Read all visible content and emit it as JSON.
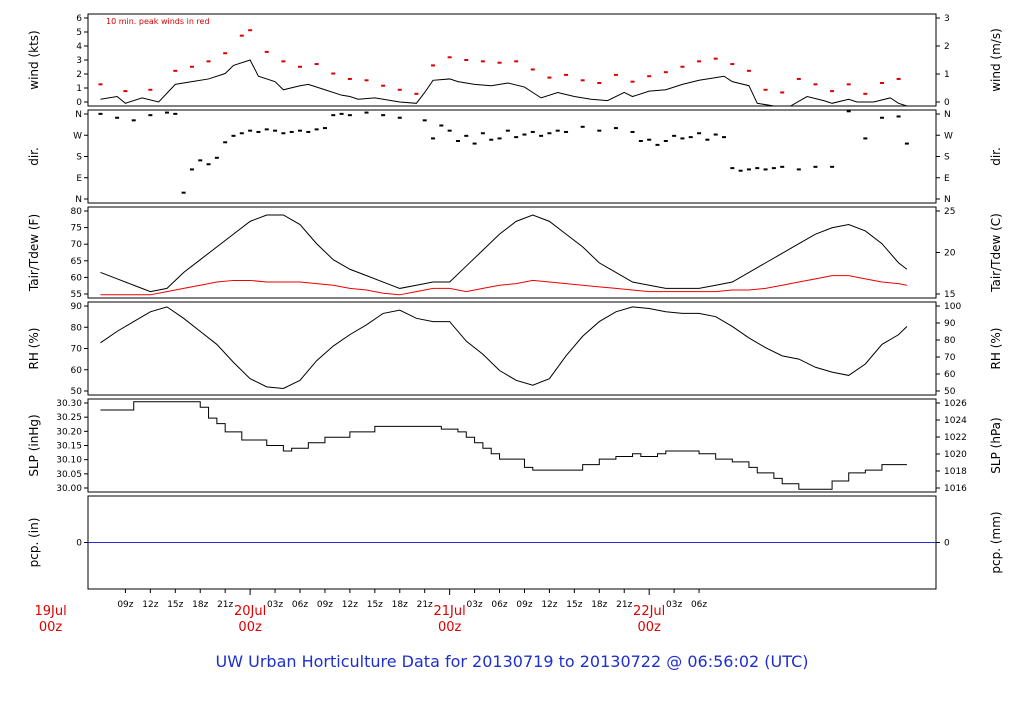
{
  "title": "UW Urban Horticulture Data for 20130719  to  20130722 @ 06:56:02  (UTC)",
  "colors": {
    "title": "#1e2fd0",
    "date_labels": "#dd0000",
    "primary_series": "#000000",
    "peak_series": "#dd0000",
    "dewpoint": "#ee0000",
    "precip": "#2b2bd6",
    "frame": "#000000"
  },
  "chart_data": [
    {
      "id": "wind",
      "type": "line",
      "ylabel": "wind (kts)",
      "ylabel_right": "wind (m/s)",
      "annotation": "10 min. peak winds in red",
      "yticks": [
        "0",
        "1",
        "2",
        "3",
        "4",
        "5",
        "6"
      ],
      "yticks_right": [
        "0",
        "1",
        "2",
        "3"
      ],
      "ylim": [
        0,
        6.8
      ],
      "series": [
        {
          "name": "wind speed",
          "color": "#000000",
          "x_hours": [
            6,
            8,
            9,
            11,
            13,
            15,
            17,
            19,
            21,
            22,
            24,
            25,
            27,
            28,
            30,
            31,
            33,
            35,
            36,
            37,
            39,
            41,
            42,
            44,
            45,
            46,
            48,
            49,
            51,
            53,
            55,
            57,
            59,
            61,
            63,
            65,
            67,
            69,
            70,
            72,
            74,
            76,
            78,
            80,
            81,
            82,
            84,
            85,
            87,
            89,
            91,
            93,
            94,
            96,
            97,
            99,
            101,
            102,
            103
          ],
          "values": [
            0.5,
            0.7,
            0.2,
            0.6,
            0.3,
            1.6,
            1.8,
            2.0,
            2.4,
            3.0,
            3.4,
            2.2,
            1.8,
            1.2,
            1.5,
            1.6,
            1.2,
            0.8,
            0.7,
            0.5,
            0.6,
            0.4,
            0.3,
            0.2,
            1.0,
            1.9,
            2.0,
            1.8,
            1.6,
            1.5,
            1.7,
            1.4,
            0.6,
            1.0,
            0.7,
            0.5,
            0.4,
            1.0,
            0.7,
            1.1,
            1.2,
            1.6,
            1.9,
            2.1,
            2.2,
            1.8,
            1.5,
            0.2,
            0.0,
            0.0,
            0.7,
            0.4,
            0.2,
            0.5,
            0.3,
            0.3,
            0.6,
            0.2,
            0.0
          ]
        },
        {
          "name": "10 min. peak winds",
          "color": "#dd0000",
          "x_hours": [
            6,
            9,
            12,
            15,
            17,
            19,
            21,
            23,
            24,
            26,
            28,
            30,
            32,
            34,
            36,
            38,
            40,
            42,
            44,
            46,
            48,
            50,
            52,
            54,
            56,
            58,
            60,
            62,
            64,
            66,
            68,
            70,
            72,
            74,
            76,
            78,
            80,
            82,
            84,
            86,
            88,
            90,
            92,
            94,
            96,
            98,
            100,
            102
          ],
          "values": [
            1.6,
            1.1,
            1.2,
            2.6,
            2.9,
            3.3,
            3.9,
            5.2,
            5.6,
            4.0,
            3.3,
            2.9,
            3.1,
            2.4,
            2.0,
            1.9,
            1.5,
            1.2,
            0.9,
            3.0,
            3.6,
            3.4,
            3.3,
            3.2,
            3.3,
            2.7,
            2.1,
            2.3,
            1.9,
            1.7,
            2.3,
            1.8,
            2.2,
            2.5,
            2.9,
            3.3,
            3.5,
            3.1,
            2.6,
            1.2,
            1.0,
            2.0,
            1.6,
            1.1,
            1.6,
            0.9,
            1.7,
            2.0
          ]
        }
      ]
    },
    {
      "id": "dir",
      "type": "scatter",
      "ylabel": "dir.",
      "ylabel_right": "dir.",
      "yticks": [
        "N",
        "E",
        "S",
        "W",
        "N"
      ],
      "yticks_right": [
        "N",
        "E",
        "S",
        "W",
        "N"
      ],
      "ylim": [
        0,
        360
      ],
      "series": [
        {
          "name": "wind direction",
          "color": "#000000",
          "x_hours": [
            6,
            8,
            10,
            12,
            14,
            15,
            16,
            17,
            18,
            19,
            20,
            21,
            22,
            23,
            24,
            25,
            26,
            27,
            28,
            29,
            30,
            31,
            32,
            33,
            34,
            35,
            36,
            38,
            40,
            42,
            45,
            46,
            47,
            48,
            49,
            50,
            51,
            52,
            53,
            54,
            55,
            56,
            57,
            58,
            59,
            60,
            61,
            62,
            64,
            66,
            68,
            70,
            71,
            72,
            73,
            74,
            75,
            76,
            77,
            78,
            79,
            80,
            81,
            82,
            83,
            84,
            85,
            86,
            87,
            88,
            90,
            92,
            94,
            96,
            98,
            100,
            102,
            103
          ],
          "values": [
            345,
            330,
            320,
            340,
            350,
            345,
            40,
            130,
            165,
            150,
            175,
            235,
            260,
            270,
            280,
            275,
            285,
            280,
            270,
            275,
            280,
            275,
            285,
            290,
            340,
            345,
            340,
            350,
            340,
            330,
            320,
            250,
            300,
            280,
            240,
            260,
            230,
            270,
            245,
            250,
            280,
            255,
            265,
            275,
            260,
            270,
            280,
            275,
            295,
            280,
            290,
            275,
            240,
            245,
            225,
            240,
            260,
            250,
            255,
            270,
            245,
            265,
            255,
            135,
            125,
            130,
            135,
            130,
            135,
            140,
            130,
            140,
            140,
            355,
            250,
            330,
            335,
            230
          ]
        }
      ]
    },
    {
      "id": "temp",
      "type": "line",
      "ylabel": "Tair/Tdew (F)",
      "ylabel_right": "Tair/Tdew (C)",
      "yticks": [
        "55",
        "60",
        "65",
        "70",
        "75",
        "80"
      ],
      "yticks_right": [
        "15",
        "20",
        "25"
      ],
      "ylim": [
        53,
        81.5
      ],
      "series": [
        {
          "name": "Tair",
          "color": "#000000",
          "x_hours": [
            6,
            8,
            10,
            12,
            14,
            16,
            18,
            20,
            22,
            24,
            26,
            28,
            30,
            32,
            34,
            36,
            38,
            40,
            42,
            44,
            46,
            48,
            50,
            52,
            54,
            56,
            58,
            60,
            62,
            64,
            66,
            68,
            70,
            72,
            74,
            76,
            78,
            80,
            82,
            84,
            86,
            88,
            90,
            92,
            94,
            96,
            98,
            100,
            102,
            103
          ],
          "values": [
            61,
            59,
            57,
            55,
            56,
            61,
            65,
            69,
            73,
            77,
            79,
            79,
            76,
            70,
            65,
            62,
            60,
            58,
            56,
            57,
            58,
            58,
            63,
            68,
            73,
            77,
            79,
            77,
            73,
            69,
            64,
            61,
            58,
            57,
            56,
            56,
            56,
            57,
            58,
            61,
            64,
            67,
            70,
            73,
            75,
            76,
            74,
            70,
            64,
            62
          ]
        },
        {
          "name": "Tdew",
          "color": "#ee0000",
          "x_hours": [
            6,
            8,
            10,
            12,
            14,
            16,
            18,
            20,
            22,
            24,
            26,
            28,
            30,
            32,
            34,
            36,
            38,
            40,
            42,
            44,
            46,
            48,
            50,
            52,
            54,
            56,
            58,
            60,
            62,
            64,
            66,
            68,
            70,
            72,
            74,
            76,
            78,
            80,
            82,
            84,
            86,
            88,
            90,
            92,
            94,
            96,
            98,
            100,
            102,
            103
          ],
          "values": [
            54,
            54,
            54,
            54,
            55,
            56,
            57,
            58,
            58.5,
            58.5,
            58,
            58,
            58,
            57.5,
            57,
            56,
            55.5,
            54.5,
            54,
            55,
            56,
            56,
            55,
            56,
            57,
            57.5,
            58.5,
            58,
            57.5,
            57,
            56.5,
            56,
            55.5,
            55,
            55,
            55,
            55,
            55,
            55.5,
            55.5,
            56,
            57,
            58,
            59,
            60,
            60,
            59,
            58,
            57.5,
            57
          ]
        }
      ]
    },
    {
      "id": "rh",
      "type": "line",
      "ylabel": "RH (%)",
      "ylabel_right": "RH (%)",
      "yticks": [
        "50",
        "60",
        "70",
        "80",
        "90"
      ],
      "yticks_right": [
        "50",
        "60",
        "70",
        "80",
        "90",
        "100"
      ],
      "ylim": [
        43,
        100
      ],
      "series": [
        {
          "name": "RH",
          "color": "#000000",
          "x_hours": [
            6,
            8,
            10,
            12,
            14,
            16,
            18,
            20,
            22,
            24,
            26,
            28,
            30,
            32,
            34,
            36,
            38,
            40,
            42,
            44,
            46,
            48,
            50,
            52,
            54,
            56,
            58,
            60,
            62,
            64,
            66,
            68,
            70,
            72,
            74,
            76,
            78,
            80,
            82,
            84,
            86,
            88,
            90,
            92,
            94,
            96,
            98,
            100,
            102,
            103
          ],
          "values": [
            75,
            82,
            88,
            94,
            97,
            90,
            82,
            74,
            63,
            53,
            48,
            47,
            52,
            64,
            73,
            80,
            86,
            93,
            95,
            90,
            88,
            88,
            76,
            68,
            58,
            52,
            49,
            53,
            67,
            79,
            88,
            94,
            97,
            96,
            94,
            93,
            93,
            91,
            85,
            78,
            72,
            67,
            65,
            60,
            57,
            55,
            62,
            74,
            80,
            85
          ]
        }
      ]
    },
    {
      "id": "slp",
      "type": "line",
      "ylabel": "SLP (inHg)",
      "ylabel_right": "SLP (hPa)",
      "yticks": [
        "30.00",
        "30.05",
        "30.10",
        "30.15",
        "30.20",
        "30.25",
        "30.30"
      ],
      "yticks_right": [
        "1016",
        "1018",
        "1020",
        "1022",
        "1024",
        "1026"
      ],
      "ylim": [
        29.97,
        30.31
      ],
      "series": [
        {
          "name": "SLP",
          "color": "#000000",
          "step": true,
          "x_hours": [
            6,
            10,
            13,
            16,
            17,
            18,
            19,
            20,
            21,
            23,
            26,
            28,
            29,
            31,
            33,
            36,
            39,
            42,
            45,
            46,
            47,
            48,
            49,
            50,
            51,
            52,
            53,
            54,
            57,
            58,
            60,
            62,
            64,
            66,
            68,
            70,
            71,
            72,
            73,
            74,
            76,
            78,
            80,
            82,
            84,
            85,
            87,
            88,
            90,
            92,
            94,
            96,
            98,
            100,
            103
          ],
          "values": [
            30.27,
            30.3,
            30.3,
            30.3,
            30.3,
            30.28,
            30.24,
            30.22,
            30.19,
            30.16,
            30.14,
            30.12,
            30.13,
            30.15,
            30.17,
            30.19,
            30.21,
            30.21,
            30.21,
            30.21,
            30.2,
            30.2,
            30.19,
            30.17,
            30.15,
            30.13,
            30.11,
            30.09,
            30.06,
            30.05,
            30.05,
            30.05,
            30.07,
            30.09,
            30.1,
            30.11,
            30.1,
            30.1,
            30.11,
            30.12,
            30.12,
            30.11,
            30.09,
            30.08,
            30.06,
            30.04,
            30.02,
            30.0,
            29.98,
            29.98,
            30.01,
            30.04,
            30.05,
            30.07,
            30.07
          ]
        }
      ]
    },
    {
      "id": "pcp",
      "type": "line",
      "ylabel": "pcp. (in)",
      "ylabel_right": "pcp. (mm)",
      "yticks": [
        "0"
      ],
      "yticks_right": [
        "0"
      ],
      "ylim": [
        -1,
        1
      ],
      "series": [
        {
          "name": "precipitation",
          "color": "#2b2bd6",
          "x_hours": [
            0,
            110
          ],
          "values": [
            0,
            0
          ]
        }
      ]
    }
  ],
  "x_axis": {
    "hour_ticks": [
      "09z",
      "12z",
      "15z",
      "18z",
      "21z",
      "03z",
      "06z",
      "09z",
      "12z",
      "15z",
      "18z",
      "21z",
      "03z",
      "06z",
      "09z",
      "12z",
      "15z",
      "18z",
      "21z",
      "03z",
      "06z"
    ],
    "date_labels": [
      {
        "day": "19Jul",
        "hour": "00z"
      },
      {
        "day": "20Jul",
        "hour": "00z"
      },
      {
        "day": "21Jul",
        "hour": "00z"
      },
      {
        "day": "22Jul",
        "hour": "00z"
      }
    ]
  }
}
